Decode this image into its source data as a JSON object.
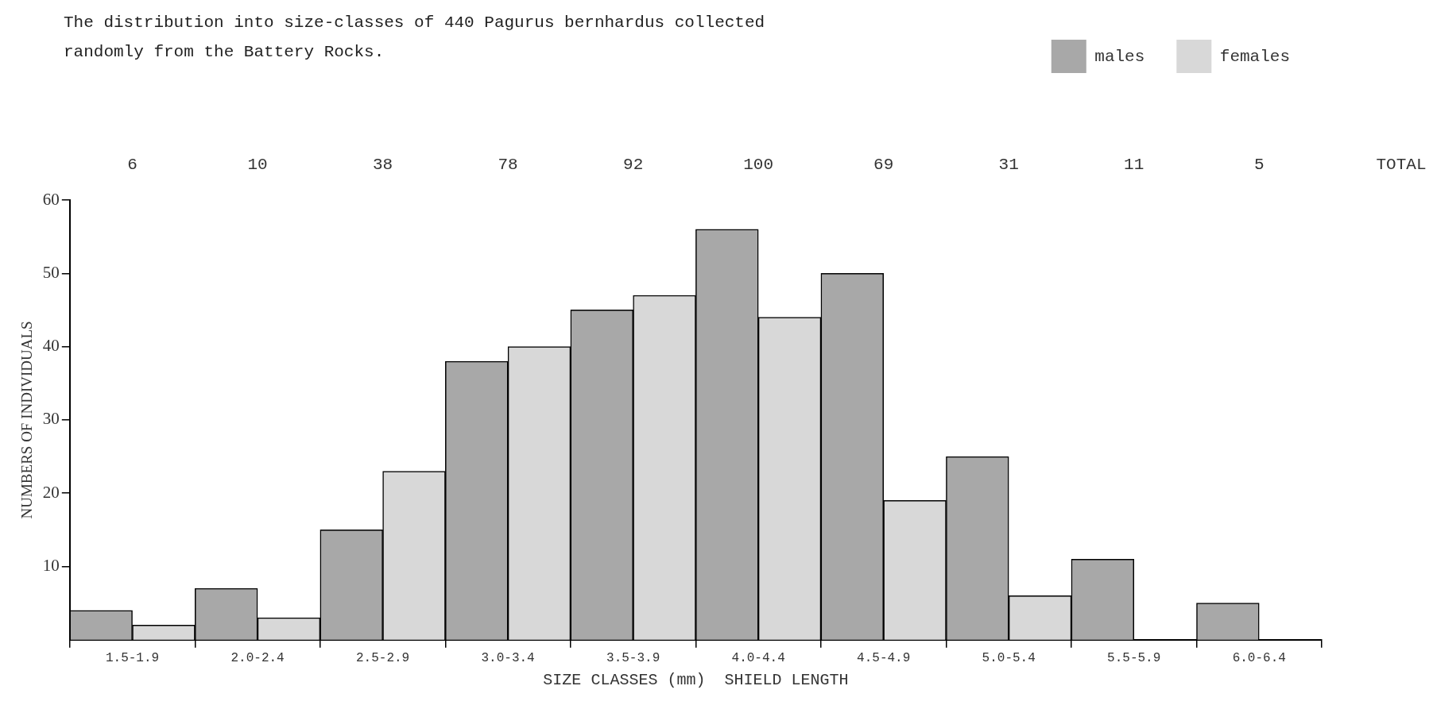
{
  "chart_data": {
    "type": "bar",
    "title": "The distribution into size-classes of 440 Pagurus bernhardus collected randomly from the Battery Rocks.",
    "xlabel": "SIZE CLASSES (mm)  SHIELD LENGTH",
    "ylabel": "NUMBERS OF INDIVIDUALS",
    "categories": [
      "1.5-1.9",
      "2.0-2.4",
      "2.5-2.9",
      "3.0-3.4",
      "3.5-3.9",
      "4.0-4.4",
      "4.5-4.9",
      "5.0-5.4",
      "5.5-5.9",
      "6.0-6.4"
    ],
    "series": [
      {
        "name": "males",
        "color": "#a8a8a8",
        "values": [
          4,
          7,
          15,
          38,
          45,
          56,
          50,
          25,
          11,
          5
        ]
      },
      {
        "name": "females",
        "color": "#d8d8d8",
        "values": [
          2,
          3,
          23,
          40,
          47,
          44,
          19,
          6,
          0,
          0
        ]
      }
    ],
    "annotations": [
      "6",
      "10",
      "38",
      "78",
      "92",
      "100",
      "69",
      "31",
      "11",
      "5",
      "TOTAL"
    ],
    "ylim": [
      0,
      60
    ],
    "yticks": [
      10,
      20,
      30,
      40,
      50,
      60
    ],
    "grid": false,
    "legend": "top right"
  }
}
